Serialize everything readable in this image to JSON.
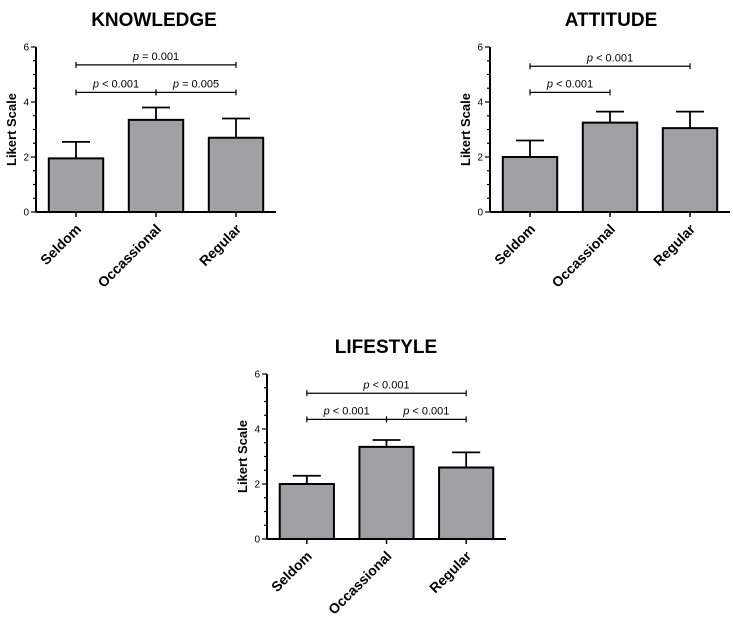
{
  "chart_data": [
    {
      "type": "bar",
      "title": "KNOWLEDGE",
      "ylabel": "Likert Scale",
      "xlabel": "",
      "ylim": [
        0,
        6
      ],
      "yticks": [
        0,
        2,
        4,
        6
      ],
      "categories": [
        "Seldom",
        "Occassional",
        "Regular"
      ],
      "values": [
        1.95,
        3.35,
        2.7
      ],
      "errors": [
        0.6,
        0.45,
        0.7
      ],
      "bar_color": "#a0a0a4",
      "annotations": [
        {
          "from": 0,
          "to": 2,
          "y": 5.35,
          "label_prefix": "p",
          "label_rest": " = 0.001"
        },
        {
          "from": 0,
          "to": 1,
          "y": 4.35,
          "label_prefix": "p",
          "label_rest": " < 0.001"
        },
        {
          "from": 1,
          "to": 2,
          "y": 4.35,
          "label_prefix": "p",
          "label_rest": " = 0.005"
        }
      ]
    },
    {
      "type": "bar",
      "title": "ATTITUDE",
      "ylabel": "Likert Scale",
      "xlabel": "",
      "ylim": [
        0,
        6
      ],
      "yticks": [
        0,
        2,
        4,
        6
      ],
      "categories": [
        "Seldom",
        "Occassional",
        "Regular"
      ],
      "values": [
        2.0,
        3.25,
        3.05
      ],
      "errors": [
        0.6,
        0.4,
        0.6
      ],
      "bar_color": "#a0a0a4",
      "annotations": [
        {
          "from": 0,
          "to": 2,
          "y": 5.3,
          "label_prefix": "p",
          "label_rest": " < 0.001"
        },
        {
          "from": 0,
          "to": 1,
          "y": 4.35,
          "label_prefix": "p",
          "label_rest": " < 0.001"
        }
      ]
    },
    {
      "type": "bar",
      "title": "LIFESTYLE",
      "ylabel": "Likert Scale",
      "xlabel": "",
      "ylim": [
        0,
        6
      ],
      "yticks": [
        0,
        2,
        4,
        6
      ],
      "categories": [
        "Seldom",
        "Occassional",
        "Regular"
      ],
      "values": [
        2.0,
        3.35,
        2.6
      ],
      "errors": [
        0.3,
        0.25,
        0.55
      ],
      "bar_color": "#a0a0a4",
      "annotations": [
        {
          "from": 0,
          "to": 2,
          "y": 5.3,
          "label_prefix": "p",
          "label_rest": " < 0.001"
        },
        {
          "from": 0,
          "to": 1,
          "y": 4.35,
          "label_prefix": "p",
          "label_rest": " < 0.001"
        },
        {
          "from": 1,
          "to": 2,
          "y": 4.35,
          "label_prefix": "p",
          "label_rest": " < 0.001"
        }
      ]
    }
  ]
}
